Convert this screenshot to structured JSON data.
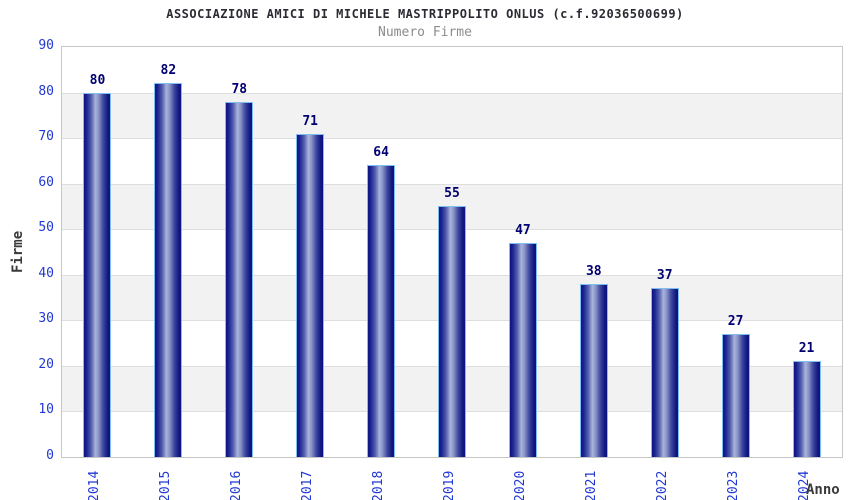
{
  "header": {
    "title": "ASSOCIAZIONE AMICI DI MICHELE MASTRIPPOLITO ONLUS (c.f.92036500699)",
    "subtitle": "Numero Firme"
  },
  "chart_data": {
    "type": "bar",
    "title": "ASSOCIAZIONE AMICI DI MICHELE MASTRIPPOLITO ONLUS (c.f.92036500699)",
    "subtitle": "Numero Firme",
    "categories": [
      "2014",
      "2015",
      "2016",
      "2017",
      "2018",
      "2019",
      "2020",
      "2021",
      "2022",
      "2023",
      "2024"
    ],
    "values": [
      80,
      82,
      78,
      71,
      64,
      55,
      47,
      38,
      37,
      27,
      21
    ],
    "xlabel": "Anno",
    "ylabel": "Firme",
    "ylim": [
      0,
      90
    ],
    "ytick_step": 10,
    "yticks": [
      0,
      10,
      20,
      30,
      40,
      50,
      60,
      70,
      80,
      90
    ],
    "grid": true,
    "band_intervals": [
      [
        10,
        20
      ],
      [
        30,
        40
      ],
      [
        50,
        60
      ],
      [
        70,
        80
      ]
    ],
    "legend": "none",
    "value_labels_shown": true
  },
  "colors": {
    "tick_label_blue": "#2238d4",
    "value_label_navy": "#000070",
    "bar_dark": "#0d1284",
    "bar_light": "#aab4dc",
    "bar_outline": "#7fbef0",
    "band_gray": "#f2f2f2",
    "gridline": "#dedede",
    "plot_border": "#c6c6c6",
    "title_color": "#2b2b33",
    "subtitle_color": "#8c8c8c",
    "axis_title_color": "#3a3a3a"
  }
}
